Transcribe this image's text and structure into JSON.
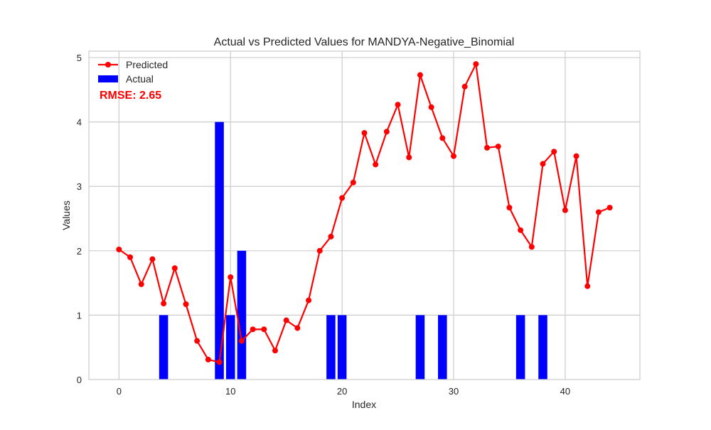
{
  "chart_data": {
    "type": "bar+line",
    "title": "Actual vs Predicted Values for MANDYA-Negative_Binomial",
    "xlabel": "Index",
    "ylabel": "Values",
    "xlim": [
      -2.7,
      46.7
    ],
    "ylim": [
      0,
      5.1
    ],
    "xticks": [
      0,
      10,
      20,
      30,
      40
    ],
    "yticks": [
      0,
      1,
      2,
      3,
      4,
      5
    ],
    "grid": true,
    "legend_position": "top-left",
    "annotation": "RMSE: 2.65",
    "series": [
      {
        "name": "Predicted",
        "kind": "line",
        "color": "#ff0000",
        "x": [
          0,
          1,
          2,
          3,
          4,
          5,
          6,
          7,
          8,
          9,
          10,
          11,
          12,
          13,
          14,
          15,
          16,
          17,
          18,
          19,
          20,
          21,
          22,
          23,
          24,
          25,
          26,
          27,
          28,
          29,
          30,
          31,
          32,
          33,
          34,
          35,
          36,
          37,
          38,
          39,
          40,
          41,
          42,
          43,
          44
        ],
        "values": [
          2.02,
          1.9,
          1.48,
          1.87,
          1.18,
          1.73,
          1.17,
          0.6,
          0.31,
          0.27,
          1.59,
          0.6,
          0.78,
          0.78,
          0.45,
          0.92,
          0.8,
          1.23,
          2.0,
          2.22,
          2.82,
          3.06,
          3.83,
          3.34,
          3.85,
          4.27,
          3.45,
          4.73,
          4.23,
          3.75,
          3.47,
          4.55,
          4.9,
          3.6,
          3.62,
          2.67,
          2.32,
          2.06,
          3.35,
          3.54,
          2.63,
          3.47,
          1.45,
          2.6,
          2.67
        ]
      },
      {
        "name": "Actual",
        "kind": "bar",
        "color": "#0000ff",
        "x": [
          0,
          1,
          2,
          3,
          4,
          5,
          6,
          7,
          8,
          9,
          10,
          11,
          12,
          13,
          14,
          15,
          16,
          17,
          18,
          19,
          20,
          21,
          22,
          23,
          24,
          25,
          26,
          27,
          28,
          29,
          30,
          31,
          32,
          33,
          34,
          35,
          36,
          37,
          38,
          39,
          40,
          41,
          42,
          43,
          44
        ],
        "values": [
          0,
          0,
          0,
          0,
          1,
          0,
          0,
          0,
          0,
          4,
          1,
          2,
          0,
          0,
          0,
          0,
          0,
          0,
          0,
          1,
          1,
          0,
          0,
          0,
          0,
          0,
          0,
          1,
          0,
          1,
          0,
          0,
          0,
          0,
          0,
          0,
          1,
          0,
          1,
          0,
          0,
          0,
          0,
          0,
          0
        ]
      }
    ]
  }
}
